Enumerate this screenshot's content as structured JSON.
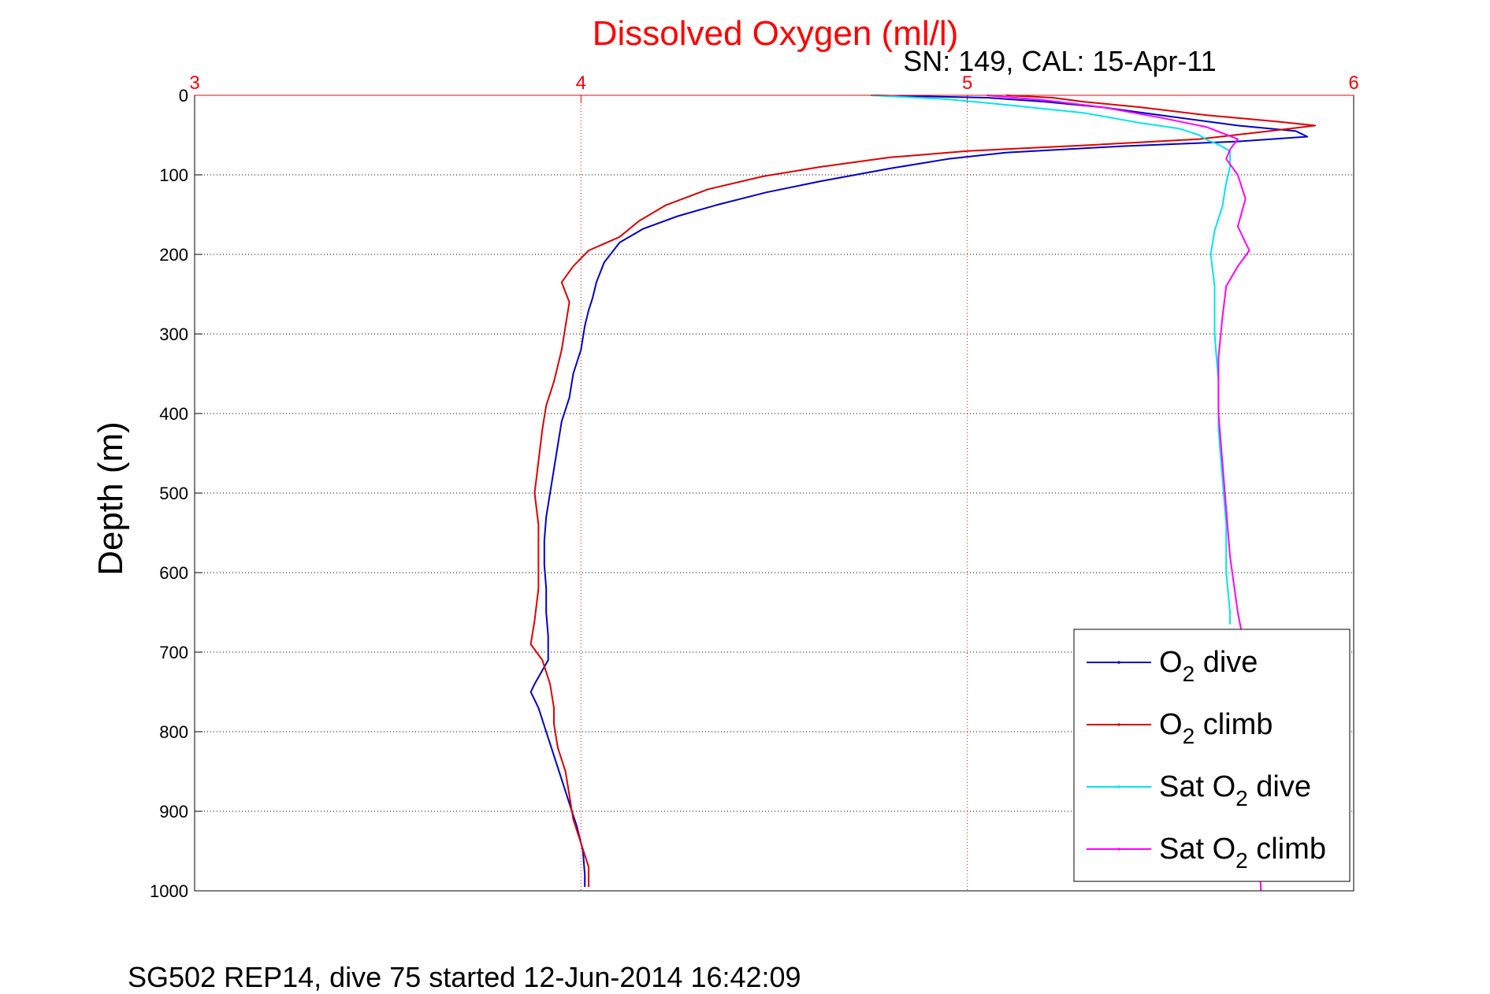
{
  "chart_data": {
    "type": "line",
    "title": "Dissolved Oxygen (ml/l)",
    "subtitle": "SN: 149, CAL: 15-Apr-11",
    "ylabel": "Depth (m)",
    "footer": "SG502 REP14, dive 75 started 12-Jun-2014 16:42:09",
    "xlim": [
      3,
      6
    ],
    "ylim": [
      0,
      1000
    ],
    "y_reversed": true,
    "x_axis_position": "top",
    "xticks": [
      "3",
      "4",
      "5",
      "6"
    ],
    "yticks": [
      "0",
      "100",
      "200",
      "300",
      "400",
      "500",
      "600",
      "700",
      "800",
      "900",
      "1000"
    ],
    "grid": true,
    "legend_position": "bottom-right",
    "colors": {
      "title": "#ff0000",
      "x_axis": "#ff0000",
      "o2_dive": "#0000cc",
      "o2_climb": "#dd0000",
      "sat_o2_dive": "#00e5ee",
      "sat_o2_climb": "#ff00ff"
    },
    "series": [
      {
        "key": "o2_dive",
        "name": "O2 dive",
        "label_main": "O",
        "label_sub": "2",
        "label_tail": " dive",
        "color": "#0000cc",
        "points": [
          [
            4.75,
            0
          ],
          [
            5.05,
            3
          ],
          [
            5.2,
            8
          ],
          [
            5.35,
            15
          ],
          [
            5.5,
            25
          ],
          [
            5.7,
            38
          ],
          [
            5.85,
            45
          ],
          [
            5.88,
            52
          ],
          [
            5.7,
            58
          ],
          [
            5.4,
            64
          ],
          [
            5.1,
            72
          ],
          [
            4.95,
            80
          ],
          [
            4.8,
            92
          ],
          [
            4.62,
            108
          ],
          [
            4.48,
            122
          ],
          [
            4.35,
            138
          ],
          [
            4.25,
            152
          ],
          [
            4.16,
            168
          ],
          [
            4.1,
            185
          ],
          [
            4.06,
            210
          ],
          [
            4.04,
            235
          ],
          [
            4.03,
            255
          ],
          [
            4.02,
            270
          ],
          [
            4.01,
            290
          ],
          [
            4.0,
            320
          ],
          [
            3.98,
            350
          ],
          [
            3.97,
            380
          ],
          [
            3.95,
            410
          ],
          [
            3.94,
            440
          ],
          [
            3.93,
            470
          ],
          [
            3.92,
            500
          ],
          [
            3.91,
            530
          ],
          [
            3.905,
            560
          ],
          [
            3.905,
            590
          ],
          [
            3.91,
            620
          ],
          [
            3.91,
            650
          ],
          [
            3.915,
            680
          ],
          [
            3.915,
            710
          ],
          [
            3.88,
            740
          ],
          [
            3.87,
            750
          ],
          [
            3.89,
            770
          ],
          [
            3.91,
            800
          ],
          [
            3.93,
            830
          ],
          [
            3.95,
            860
          ],
          [
            3.97,
            890
          ],
          [
            3.99,
            920
          ],
          [
            4.005,
            950
          ],
          [
            4.01,
            980
          ],
          [
            4.01,
            995
          ]
        ]
      },
      {
        "key": "o2_climb",
        "name": "O2 climb",
        "label_main": "O",
        "label_sub": "2",
        "label_tail": " climb",
        "color": "#dd0000",
        "points": [
          [
            5.1,
            0
          ],
          [
            5.22,
            3
          ],
          [
            5.3,
            8
          ],
          [
            5.45,
            15
          ],
          [
            5.62,
            25
          ],
          [
            5.8,
            33
          ],
          [
            5.9,
            38
          ],
          [
            5.8,
            44
          ],
          [
            5.6,
            55
          ],
          [
            5.3,
            63
          ],
          [
            5.0,
            70
          ],
          [
            4.8,
            78
          ],
          [
            4.62,
            90
          ],
          [
            4.47,
            102
          ],
          [
            4.33,
            118
          ],
          [
            4.22,
            138
          ],
          [
            4.15,
            158
          ],
          [
            4.1,
            178
          ],
          [
            4.02,
            195
          ],
          [
            3.98,
            215
          ],
          [
            3.95,
            235
          ],
          [
            3.97,
            260
          ],
          [
            3.96,
            290
          ],
          [
            3.95,
            320
          ],
          [
            3.93,
            360
          ],
          [
            3.91,
            390
          ],
          [
            3.9,
            420
          ],
          [
            3.89,
            460
          ],
          [
            3.88,
            500
          ],
          [
            3.89,
            540
          ],
          [
            3.89,
            580
          ],
          [
            3.89,
            620
          ],
          [
            3.88,
            660
          ],
          [
            3.87,
            690
          ],
          [
            3.9,
            710
          ],
          [
            3.92,
            740
          ],
          [
            3.93,
            770
          ],
          [
            3.93,
            790
          ],
          [
            3.94,
            820
          ],
          [
            3.96,
            850
          ],
          [
            3.97,
            880
          ],
          [
            3.98,
            910
          ],
          [
            4.0,
            940
          ],
          [
            4.02,
            970
          ],
          [
            4.02,
            995
          ]
        ]
      },
      {
        "key": "sat_o2_dive",
        "name": "Sat O2 dive",
        "label_main": "Sat O",
        "label_sub": "2",
        "label_tail": " dive",
        "color": "#00e5ee",
        "points": [
          [
            4.75,
            0
          ],
          [
            4.95,
            5
          ],
          [
            5.1,
            12
          ],
          [
            5.3,
            22
          ],
          [
            5.45,
            35
          ],
          [
            5.55,
            42
          ],
          [
            5.6,
            50
          ],
          [
            5.62,
            56
          ],
          [
            5.65,
            62
          ],
          [
            5.68,
            70
          ],
          [
            5.68,
            90
          ],
          [
            5.67,
            110
          ],
          [
            5.66,
            140
          ],
          [
            5.64,
            170
          ],
          [
            5.63,
            200
          ],
          [
            5.64,
            240
          ],
          [
            5.64,
            300
          ],
          [
            5.65,
            360
          ],
          [
            5.65,
            420
          ],
          [
            5.66,
            480
          ],
          [
            5.67,
            540
          ],
          [
            5.67,
            600
          ],
          [
            5.68,
            650
          ],
          [
            5.68,
            665
          ]
        ]
      },
      {
        "key": "sat_o2_climb",
        "name": "Sat O2 climb",
        "label_main": "Sat O",
        "label_sub": "2",
        "label_tail": " climb",
        "color": "#ff00ff",
        "points": [
          [
            5.05,
            0
          ],
          [
            5.2,
            6
          ],
          [
            5.35,
            15
          ],
          [
            5.5,
            28
          ],
          [
            5.62,
            40
          ],
          [
            5.7,
            55
          ],
          [
            5.68,
            68
          ],
          [
            5.67,
            80
          ],
          [
            5.7,
            100
          ],
          [
            5.72,
            130
          ],
          [
            5.7,
            165
          ],
          [
            5.73,
            195
          ],
          [
            5.7,
            215
          ],
          [
            5.67,
            240
          ],
          [
            5.66,
            280
          ],
          [
            5.65,
            330
          ],
          [
            5.65,
            400
          ],
          [
            5.66,
            460
          ],
          [
            5.67,
            520
          ],
          [
            5.68,
            580
          ],
          [
            5.7,
            650
          ],
          [
            5.72,
            700
          ],
          [
            5.74,
            800
          ],
          [
            5.75,
            900
          ],
          [
            5.76,
            1000
          ]
        ]
      }
    ]
  }
}
